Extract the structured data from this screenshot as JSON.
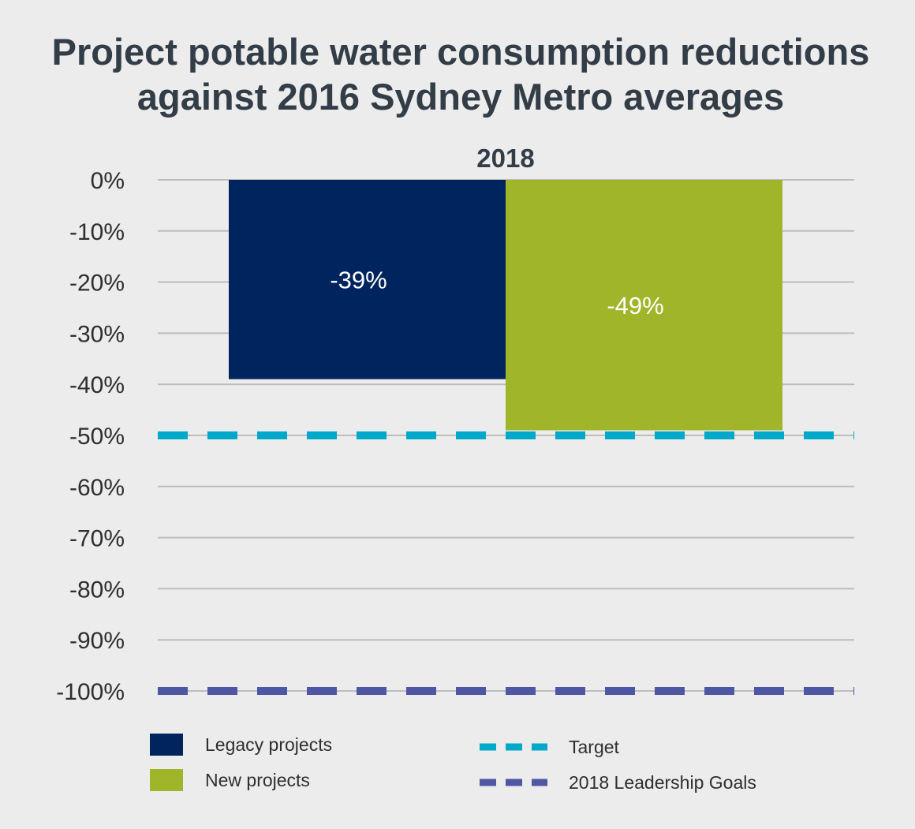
{
  "chart_data": {
    "type": "bar",
    "title_lines": [
      "Project potable water consumption reductions",
      "against 2016 Sydney Metro averages"
    ],
    "categories": [
      "2018"
    ],
    "ylim": [
      -100,
      0
    ],
    "y_ticks": [
      {
        "value": 0,
        "label": "0%"
      },
      {
        "value": -10,
        "label": "-10%"
      },
      {
        "value": -20,
        "label": "-20%"
      },
      {
        "value": -30,
        "label": "-30%"
      },
      {
        "value": -40,
        "label": "-40%"
      },
      {
        "value": -50,
        "label": "-50%"
      },
      {
        "value": -60,
        "label": "-60%"
      },
      {
        "value": -70,
        "label": "-70%"
      },
      {
        "value": -80,
        "label": "-80%"
      },
      {
        "value": -90,
        "label": "-90%"
      },
      {
        "value": -100,
        "label": "-100%"
      }
    ],
    "grid": true,
    "series": [
      {
        "name": "Legacy projects",
        "values": [
          -39
        ],
        "labels": [
          "-39%"
        ],
        "color": "#00245d"
      },
      {
        "name": "New projects",
        "values": [
          -49
        ],
        "labels": [
          "-49%"
        ],
        "color": "#a1b52b"
      }
    ],
    "reference_lines": [
      {
        "name": "Target",
        "value": -50,
        "color": "#00a9c9",
        "style": "dashed"
      },
      {
        "name": "2018 Leadership Goals",
        "value": -100,
        "color": "#4f56a4",
        "style": "dashed"
      }
    ],
    "legend_placement": "bottom"
  }
}
